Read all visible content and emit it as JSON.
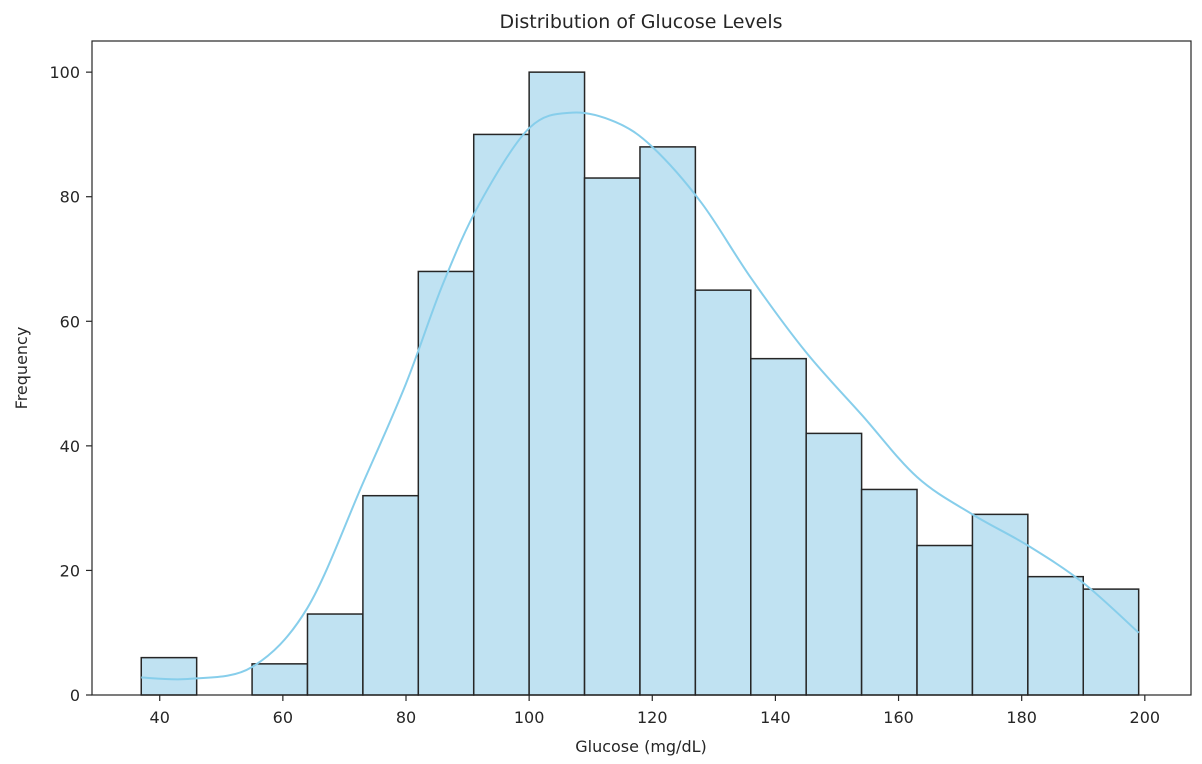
{
  "chart_data": {
    "type": "bar",
    "title": "Distribution of Glucose Levels",
    "xlabel": "Glucose (mg/dL)",
    "ylabel": "Frequency",
    "xlim": [
      29,
      207.5
    ],
    "ylim": [
      0,
      105
    ],
    "x_ticks": [
      40,
      60,
      80,
      100,
      120,
      140,
      160,
      180,
      200
    ],
    "y_ticks": [
      0,
      20,
      40,
      60,
      80,
      100
    ],
    "bin_edges": [
      37,
      46,
      55,
      64,
      73,
      82,
      91,
      100,
      109,
      118,
      127,
      136,
      145,
      154,
      163,
      172,
      181,
      190,
      199
    ],
    "values": [
      6,
      0,
      5,
      13,
      32,
      68,
      90,
      100,
      83,
      88,
      65,
      54,
      42,
      33,
      24,
      29,
      19,
      17
    ],
    "kde": {
      "x": [
        37,
        45,
        55,
        64,
        73,
        80,
        86,
        92,
        100,
        107,
        114,
        120,
        128,
        136,
        145,
        154,
        163,
        172,
        181,
        190,
        199
      ],
      "y": [
        2.8,
        2.6,
        4.5,
        14,
        34,
        50,
        66,
        79,
        91,
        93.5,
        92,
        88,
        79,
        67,
        55,
        45,
        35,
        29,
        24,
        18,
        10
      ]
    },
    "bar_color": "#c0e2f2",
    "bar_edge_color": "#262626",
    "kde_color": "#87ceeb",
    "grid": false,
    "legend": "none"
  }
}
